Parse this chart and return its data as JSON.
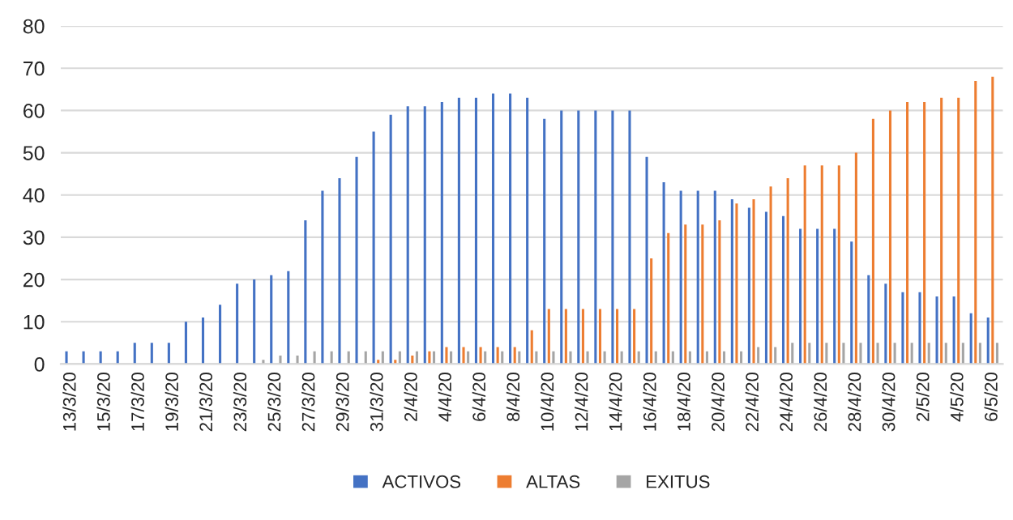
{
  "chart_data": {
    "type": "bar",
    "categories": [
      "13/3/20",
      null,
      "15/3/20",
      null,
      "17/3/20",
      null,
      "19/3/20",
      null,
      "21/3/20",
      null,
      "23/3/20",
      null,
      "25/3/20",
      null,
      "27/3/20",
      null,
      "29/3/20",
      null,
      "31/3/20",
      null,
      "2/4/20",
      null,
      "4/4/20",
      null,
      "6/4/20",
      null,
      "8/4/20",
      null,
      "10/4/20",
      null,
      "12/4/20",
      null,
      "14/4/20",
      null,
      "16/4/20",
      null,
      "18/4/20",
      null,
      "20/4/20",
      null,
      "22/4/20",
      null,
      "24/4/20",
      null,
      "26/4/20",
      null,
      "28/4/20",
      null,
      "30/4/20",
      null,
      "2/5/20",
      null,
      "4/5/20",
      null,
      "6/5/20"
    ],
    "series": [
      {
        "name": "ACTIVOS",
        "color": "#4472c4",
        "values": [
          3,
          3,
          3,
          3,
          5,
          5,
          5,
          10,
          11,
          14,
          19,
          20,
          21,
          22,
          34,
          41,
          44,
          49,
          55,
          59,
          61,
          61,
          62,
          63,
          63,
          64,
          64,
          63,
          58,
          60,
          60,
          60,
          60,
          60,
          49,
          43,
          41,
          41,
          41,
          39,
          37,
          36,
          35,
          32,
          32,
          32,
          29,
          21,
          19,
          17,
          17,
          16,
          16,
          12,
          11
        ]
      },
      {
        "name": "ALTAS",
        "color": "#ed7d31",
        "values": [
          0,
          0,
          0,
          0,
          0,
          0,
          0,
          0,
          0,
          0,
          0,
          0,
          0,
          0,
          0,
          0,
          0,
          0,
          1,
          1,
          2,
          3,
          4,
          4,
          4,
          4,
          4,
          8,
          13,
          13,
          13,
          13,
          13,
          13,
          25,
          31,
          33,
          33,
          34,
          38,
          39,
          42,
          44,
          47,
          47,
          47,
          50,
          58,
          60,
          62,
          62,
          63,
          63,
          67,
          68
        ]
      },
      {
        "name": "EXITUS",
        "color": "#a5a5a5",
        "values": [
          0,
          0,
          0,
          0,
          0,
          0,
          0,
          0,
          0,
          0,
          0,
          1,
          2,
          2,
          3,
          3,
          3,
          3,
          3,
          3,
          3,
          3,
          3,
          3,
          3,
          3,
          3,
          3,
          3,
          3,
          3,
          3,
          3,
          3,
          3,
          3,
          3,
          3,
          3,
          3,
          4,
          4,
          5,
          5,
          5,
          5,
          5,
          5,
          5,
          5,
          5,
          5,
          5,
          5,
          5
        ]
      }
    ],
    "ylim": [
      0,
      80
    ],
    "yticks": [
      0,
      10,
      20,
      30,
      40,
      50,
      60,
      70,
      80
    ],
    "grid": "y",
    "legend": "bottom"
  }
}
